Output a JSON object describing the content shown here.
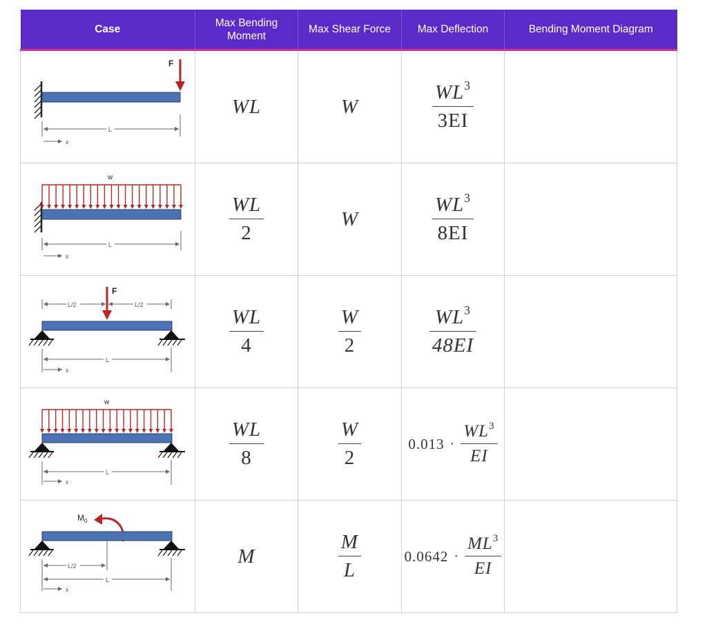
{
  "headers": [
    "Case",
    "Max Bending Moment",
    "Max Shear Force",
    "Max Deflection",
    "Bending Moment Diagram"
  ],
  "diagram_labels": {
    "force": "F",
    "distributed": "w",
    "length": "L",
    "half_length": "L/2",
    "position": "x",
    "moment": "M",
    "moment_sub": "0"
  },
  "rows": [
    {
      "moment": {
        "num": "WL",
        "den": ""
      },
      "shear": {
        "num": "W",
        "den": ""
      },
      "deflection": {
        "coef": "",
        "num": "WL",
        "exp": "3",
        "den": "3EI"
      }
    },
    {
      "moment": {
        "num": "WL",
        "den": "2"
      },
      "shear": {
        "num": "W",
        "den": ""
      },
      "deflection": {
        "coef": "",
        "num": "WL",
        "exp": "3",
        "den": "8EI"
      }
    },
    {
      "moment": {
        "num": "WL",
        "den": "4"
      },
      "shear": {
        "num": "W",
        "den": "2"
      },
      "deflection": {
        "coef": "",
        "num": "WL",
        "exp": "3",
        "den": "48EI"
      }
    },
    {
      "moment": {
        "num": "WL",
        "den": "8"
      },
      "shear": {
        "num": "W",
        "den": "2"
      },
      "deflection": {
        "coef": "0.013",
        "num": "WL",
        "exp": "3",
        "den": "EI"
      }
    },
    {
      "moment": {
        "num": "M",
        "den": ""
      },
      "shear": {
        "num": "M",
        "den": "L"
      },
      "deflection": {
        "coef": "0.0642",
        "num": "ML",
        "exp": "3",
        "den": "EI"
      }
    }
  ]
}
